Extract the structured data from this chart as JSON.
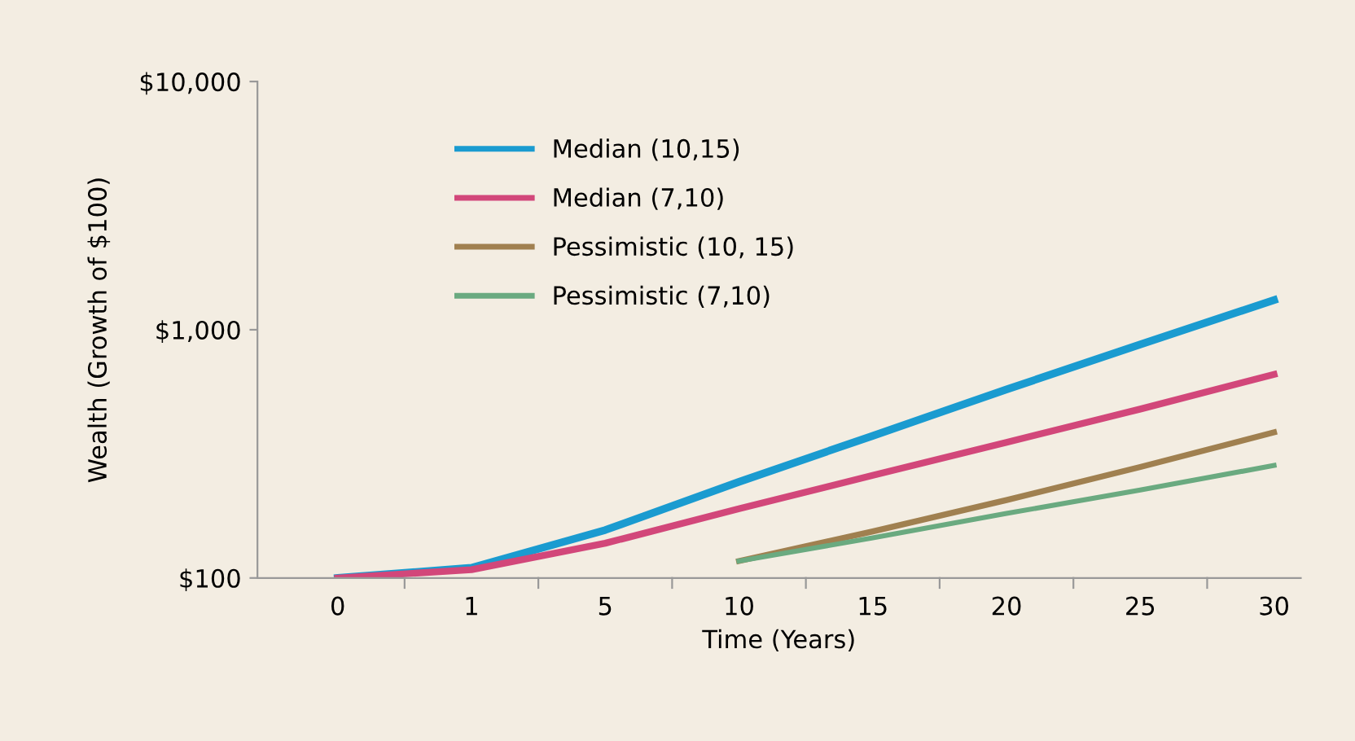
{
  "chart_data": {
    "type": "line",
    "xlabel": "Time (Years)",
    "ylabel": "Wealth (Growth of $100)",
    "categories": [
      "0",
      "1",
      "5",
      "10",
      "15",
      "20",
      "25",
      "30"
    ],
    "series": [
      {
        "name": "Median (10,15)",
        "color": "#1a9bd0",
        "values": [
          100,
          110,
          156,
          244,
          374,
          575,
          872,
          1318
        ]
      },
      {
        "name": "Median (7,10)",
        "color": "#d2477a",
        "values": [
          100,
          108,
          138,
          190,
          259,
          352,
          479,
          661
        ]
      },
      {
        "name": "Pessimistic (10, 15)",
        "color": "#a08050",
        "values": [
          null,
          null,
          null,
          117,
          154,
          206,
          280,
          386
        ]
      },
      {
        "name": "Pessimistic (7,10)",
        "color": "#6aaa80",
        "values": [
          null,
          null,
          null,
          117,
          145,
          182,
          226,
          284
        ]
      }
    ],
    "log": true,
    "ylim": [
      100,
      10000
    ],
    "yticks": [
      {
        "value": 100,
        "label": "$100"
      },
      {
        "value": 1000,
        "label": "$1,000"
      },
      {
        "value": 10000,
        "label": "$10,000"
      }
    ],
    "grid": false,
    "legend": "top left",
    "marker": "none",
    "line_style": "solid"
  }
}
